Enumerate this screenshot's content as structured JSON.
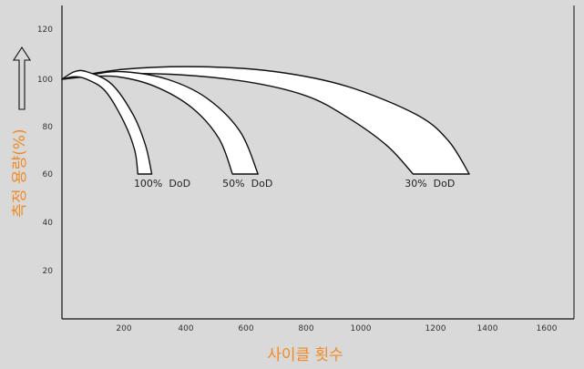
{
  "colors": {
    "background": "#d9d9d9",
    "axis": "#111111",
    "band_fill": "#ffffff",
    "band_stroke": "#111111",
    "axis_title": "#f08a24"
  },
  "chart_data": {
    "type": "area",
    "title": "",
    "xlabel": "사이클 횟수",
    "ylabel": "측정 용량(%)",
    "xlim": [
      0,
      1700
    ],
    "ylim": [
      0,
      120
    ],
    "xticks": [
      "200",
      "400",
      "600",
      "800",
      "1000",
      "1200",
      "1400",
      "1600"
    ],
    "yticks": [
      "20",
      "40",
      "60",
      "80",
      "100",
      "120"
    ],
    "grid": false,
    "series": [
      {
        "name": "100% DoD",
        "upper": [
          [
            0,
            100
          ],
          [
            40,
            103
          ],
          [
            80,
            103
          ],
          [
            160,
            98
          ],
          [
            230,
            85
          ],
          [
            270,
            72
          ],
          [
            290,
            60
          ]
        ],
        "lower": [
          [
            0,
            100
          ],
          [
            40,
            101
          ],
          [
            80,
            100
          ],
          [
            140,
            95
          ],
          [
            200,
            82
          ],
          [
            235,
            70
          ],
          [
            245,
            60
          ]
        ]
      },
      {
        "name": "50% DoD",
        "upper": [
          [
            0,
            100
          ],
          [
            100,
            102
          ],
          [
            200,
            103
          ],
          [
            340,
            100
          ],
          [
            470,
            92
          ],
          [
            580,
            78
          ],
          [
            640,
            60
          ]
        ],
        "lower": [
          [
            0,
            100
          ],
          [
            80,
            101
          ],
          [
            180,
            101
          ],
          [
            300,
            97
          ],
          [
            420,
            88
          ],
          [
            510,
            75
          ],
          [
            555,
            60
          ]
        ]
      },
      {
        "name": "30% DoD",
        "upper": [
          [
            0,
            100
          ],
          [
            200,
            104
          ],
          [
            450,
            105
          ],
          [
            700,
            103
          ],
          [
            950,
            97
          ],
          [
            1150,
            85
          ],
          [
            1250,
            74
          ],
          [
            1330,
            60
          ]
        ],
        "lower": [
          [
            0,
            100
          ],
          [
            150,
            102
          ],
          [
            350,
            102
          ],
          [
            600,
            99
          ],
          [
            800,
            93
          ],
          [
            950,
            84
          ],
          [
            1070,
            72
          ],
          [
            1140,
            60
          ]
        ]
      }
    ]
  }
}
